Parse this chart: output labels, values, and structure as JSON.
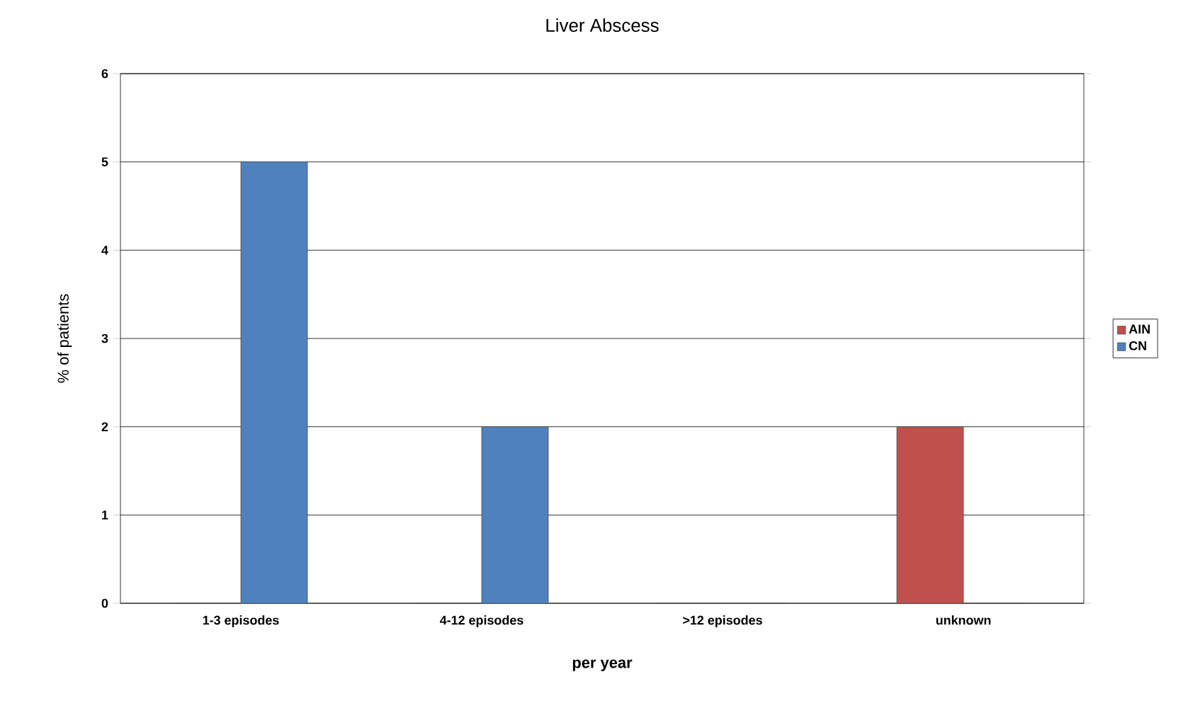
{
  "chart_data": {
    "type": "bar",
    "title": "Liver Abscess",
    "xlabel": "per year",
    "ylabel": "% of patients",
    "categories": [
      "1-3 episodes",
      "4-12 episodes",
      ">12 episodes",
      "unknown"
    ],
    "series": [
      {
        "name": "AIN",
        "color": "#c0504d",
        "values": [
          0,
          0,
          0,
          2
        ]
      },
      {
        "name": "CN",
        "color": "#4f81bd",
        "values": [
          5,
          2,
          0,
          0
        ]
      }
    ],
    "ylim": [
      0,
      6
    ],
    "yticks": [
      0,
      1,
      2,
      3,
      4,
      5,
      6
    ],
    "grid": "y",
    "legend": "right"
  }
}
